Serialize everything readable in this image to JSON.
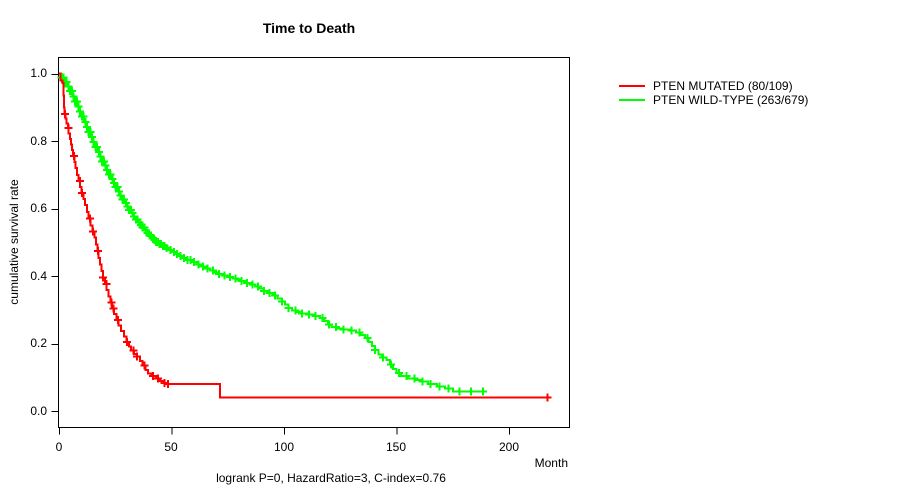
{
  "chart_data": {
    "type": "line",
    "subtype": "kaplan-meier-step",
    "title": "Time to Death",
    "xlabel": "Month",
    "ylabel": "cumulative survival rate",
    "caption": "logrank P=0, HazardRatio=3, C-index=0.76",
    "xlim": [
      0,
      227
    ],
    "ylim": [
      0,
      1.04
    ],
    "grid": false,
    "legend_position": "top-right-outside",
    "xticks": [
      0,
      50,
      100,
      150,
      200
    ],
    "yticks": [
      1.0,
      0.8,
      0.6,
      0.4,
      0.2,
      0.0
    ],
    "xtick_labels": [
      "0",
      "50",
      "100",
      "150",
      "200"
    ],
    "ytick_labels": [
      "1.0",
      "0.8",
      "0.6",
      "0.4",
      "0.2",
      "0.0"
    ],
    "series": [
      {
        "name": "PTEN MUTATED (80/109)",
        "color": "#ff0000",
        "points": [
          [
            0,
            1.0
          ],
          [
            0.7,
            0.98
          ],
          [
            1.6,
            0.972
          ],
          [
            1.9,
            0.935
          ],
          [
            2.2,
            0.9
          ],
          [
            2.5,
            0.88
          ],
          [
            2.9,
            0.866
          ],
          [
            3.4,
            0.852
          ],
          [
            3.9,
            0.838
          ],
          [
            4.3,
            0.822
          ],
          [
            4.8,
            0.806
          ],
          [
            5.3,
            0.79
          ],
          [
            5.8,
            0.773
          ],
          [
            6.3,
            0.755
          ],
          [
            6.8,
            0.738
          ],
          [
            7.4,
            0.72
          ],
          [
            8,
            0.7
          ],
          [
            8.7,
            0.682
          ],
          [
            9.4,
            0.664
          ],
          [
            10.1,
            0.646
          ],
          [
            10.8,
            0.628
          ],
          [
            11.6,
            0.61
          ],
          [
            12.4,
            0.59
          ],
          [
            13.2,
            0.57
          ],
          [
            14,
            0.55
          ],
          [
            14.9,
            0.532
          ],
          [
            15.7,
            0.514
          ],
          [
            16.4,
            0.494
          ],
          [
            17,
            0.474
          ],
          [
            17.6,
            0.454
          ],
          [
            18.2,
            0.434
          ],
          [
            18.9,
            0.415
          ],
          [
            19.6,
            0.396
          ],
          [
            20.4,
            0.377
          ],
          [
            21.2,
            0.358
          ],
          [
            22,
            0.34
          ],
          [
            22.8,
            0.322
          ],
          [
            23.6,
            0.304
          ],
          [
            24.5,
            0.287
          ],
          [
            25.5,
            0.27
          ],
          [
            26.5,
            0.253
          ],
          [
            27.6,
            0.237
          ],
          [
            28.8,
            0.221
          ],
          [
            30,
            0.205
          ],
          [
            31,
            0.191
          ],
          [
            32.1,
            0.179
          ],
          [
            33.3,
            0.169
          ],
          [
            34.7,
            0.161
          ],
          [
            36,
            0.148
          ],
          [
            37.2,
            0.135
          ],
          [
            38.4,
            0.121
          ],
          [
            39.6,
            0.111
          ],
          [
            41.2,
            0.103
          ],
          [
            43,
            0.096
          ],
          [
            44.8,
            0.089
          ],
          [
            46.5,
            0.083
          ],
          [
            47.6,
            0.08
          ],
          [
            71.5,
            0.04
          ],
          [
            217,
            0.04
          ]
        ],
        "censor_times": [
          2.6,
          4.2,
          6.7,
          9.3,
          10.3,
          13.7,
          15.2,
          17.4,
          19.6,
          21,
          23.4,
          24.2,
          26.3,
          30.2,
          33.1,
          34.7,
          38,
          41.8,
          43.9,
          46.9,
          48.5,
          217
        ]
      },
      {
        "name": "PTEN WILD-TYPE (263/679)",
        "color": "#00ff00",
        "points": [
          [
            0,
            1.0
          ],
          [
            1.2,
            0.988
          ],
          [
            2.4,
            0.975
          ],
          [
            3.6,
            0.962
          ],
          [
            4.8,
            0.948
          ],
          [
            6,
            0.932
          ],
          [
            7,
            0.917
          ],
          [
            8,
            0.902
          ],
          [
            9,
            0.887
          ],
          [
            10,
            0.872
          ],
          [
            11,
            0.857
          ],
          [
            12,
            0.842
          ],
          [
            13,
            0.827
          ],
          [
            14,
            0.812
          ],
          [
            15,
            0.797
          ],
          [
            16,
            0.782
          ],
          [
            17,
            0.768
          ],
          [
            18,
            0.754
          ],
          [
            19,
            0.74
          ],
          [
            20,
            0.727
          ],
          [
            21,
            0.714
          ],
          [
            22,
            0.701
          ],
          [
            23,
            0.688
          ],
          [
            24,
            0.675
          ],
          [
            25,
            0.663
          ],
          [
            26,
            0.651
          ],
          [
            27,
            0.639
          ],
          [
            28,
            0.627
          ],
          [
            29,
            0.616
          ],
          [
            30,
            0.606
          ],
          [
            31,
            0.596
          ],
          [
            32,
            0.586
          ],
          [
            33,
            0.577
          ],
          [
            34,
            0.568
          ],
          [
            35,
            0.559
          ],
          [
            36,
            0.551
          ],
          [
            37,
            0.543
          ],
          [
            38,
            0.535
          ],
          [
            39,
            0.527
          ],
          [
            40,
            0.52
          ],
          [
            41,
            0.513
          ],
          [
            42,
            0.507
          ],
          [
            43,
            0.501
          ],
          [
            44.5,
            0.495
          ],
          [
            46,
            0.489
          ],
          [
            47.5,
            0.483
          ],
          [
            49,
            0.477
          ],
          [
            50.5,
            0.471
          ],
          [
            52,
            0.465
          ],
          [
            53.5,
            0.459
          ],
          [
            55,
            0.453
          ],
          [
            57,
            0.447
          ],
          [
            59,
            0.441
          ],
          [
            61,
            0.434
          ],
          [
            63,
            0.428
          ],
          [
            65,
            0.422
          ],
          [
            67,
            0.416
          ],
          [
            69,
            0.411
          ],
          [
            71,
            0.406
          ],
          [
            73,
            0.401
          ],
          [
            75,
            0.397
          ],
          [
            77,
            0.393
          ],
          [
            79,
            0.389
          ],
          [
            81,
            0.385
          ],
          [
            83,
            0.38
          ],
          [
            85,
            0.375
          ],
          [
            87,
            0.369
          ],
          [
            89,
            0.363
          ],
          [
            91,
            0.356
          ],
          [
            93,
            0.349
          ],
          [
            95,
            0.342
          ],
          [
            97,
            0.334
          ],
          [
            99,
            0.325
          ],
          [
            100.5,
            0.315
          ],
          [
            102,
            0.305
          ],
          [
            103.5,
            0.298
          ],
          [
            105.5,
            0.293
          ],
          [
            108,
            0.289
          ],
          [
            111,
            0.286
          ],
          [
            114,
            0.282
          ],
          [
            116,
            0.276
          ],
          [
            118,
            0.266
          ],
          [
            119.5,
            0.256
          ],
          [
            121,
            0.249
          ],
          [
            123.5,
            0.245
          ],
          [
            126.5,
            0.242
          ],
          [
            129.5,
            0.238
          ],
          [
            132,
            0.232
          ],
          [
            134,
            0.225
          ],
          [
            136,
            0.216
          ],
          [
            137.5,
            0.205
          ],
          [
            139,
            0.193
          ],
          [
            140.5,
            0.181
          ],
          [
            142,
            0.168
          ],
          [
            143.5,
            0.158
          ],
          [
            145.5,
            0.151
          ],
          [
            147,
            0.138
          ],
          [
            148.5,
            0.125
          ],
          [
            150,
            0.112
          ],
          [
            152,
            0.103
          ],
          [
            155,
            0.097
          ],
          [
            158.5,
            0.092
          ],
          [
            161,
            0.088
          ],
          [
            164,
            0.08
          ],
          [
            168,
            0.073
          ],
          [
            171.5,
            0.066
          ],
          [
            175,
            0.058
          ],
          [
            189,
            0.058
          ]
        ],
        "censor_times": [
          1.2,
          1.9,
          2.7,
          3.4,
          4.2,
          4.9,
          5.7,
          6.4,
          7.2,
          7.9,
          8.7,
          9.4,
          10.2,
          10.9,
          11.7,
          12.4,
          13.2,
          13.9,
          14.7,
          15.4,
          16.2,
          16.9,
          17.7,
          18.4,
          19.2,
          19.9,
          20.7,
          21.4,
          22.2,
          22.9,
          23.7,
          24.4,
          25.2,
          25.9,
          26.7,
          27.4,
          28.2,
          28.9,
          29.7,
          30.4,
          31.2,
          31.9,
          32.7,
          33.4,
          34.2,
          34.9,
          35.7,
          36.4,
          37.2,
          37.9,
          38.7,
          39.4,
          40.2,
          40.9,
          41.7,
          42.4,
          43.2,
          43.9,
          44.7,
          45.4,
          46.2,
          46.9,
          47.7,
          49.5,
          51,
          52.5,
          54,
          55.5,
          57,
          58.5,
          60,
          62,
          64,
          66,
          68.5,
          71,
          73.5,
          76,
          78.5,
          81,
          83.5,
          86,
          88.5,
          91,
          93.5,
          96,
          99,
          102,
          105,
          108,
          111,
          114,
          117,
          120,
          123,
          126.5,
          130,
          133.5,
          137,
          140.5,
          144,
          147.5,
          151,
          154.5,
          158,
          161.5,
          165,
          169,
          173,
          178,
          183,
          188.5
        ]
      }
    ]
  }
}
